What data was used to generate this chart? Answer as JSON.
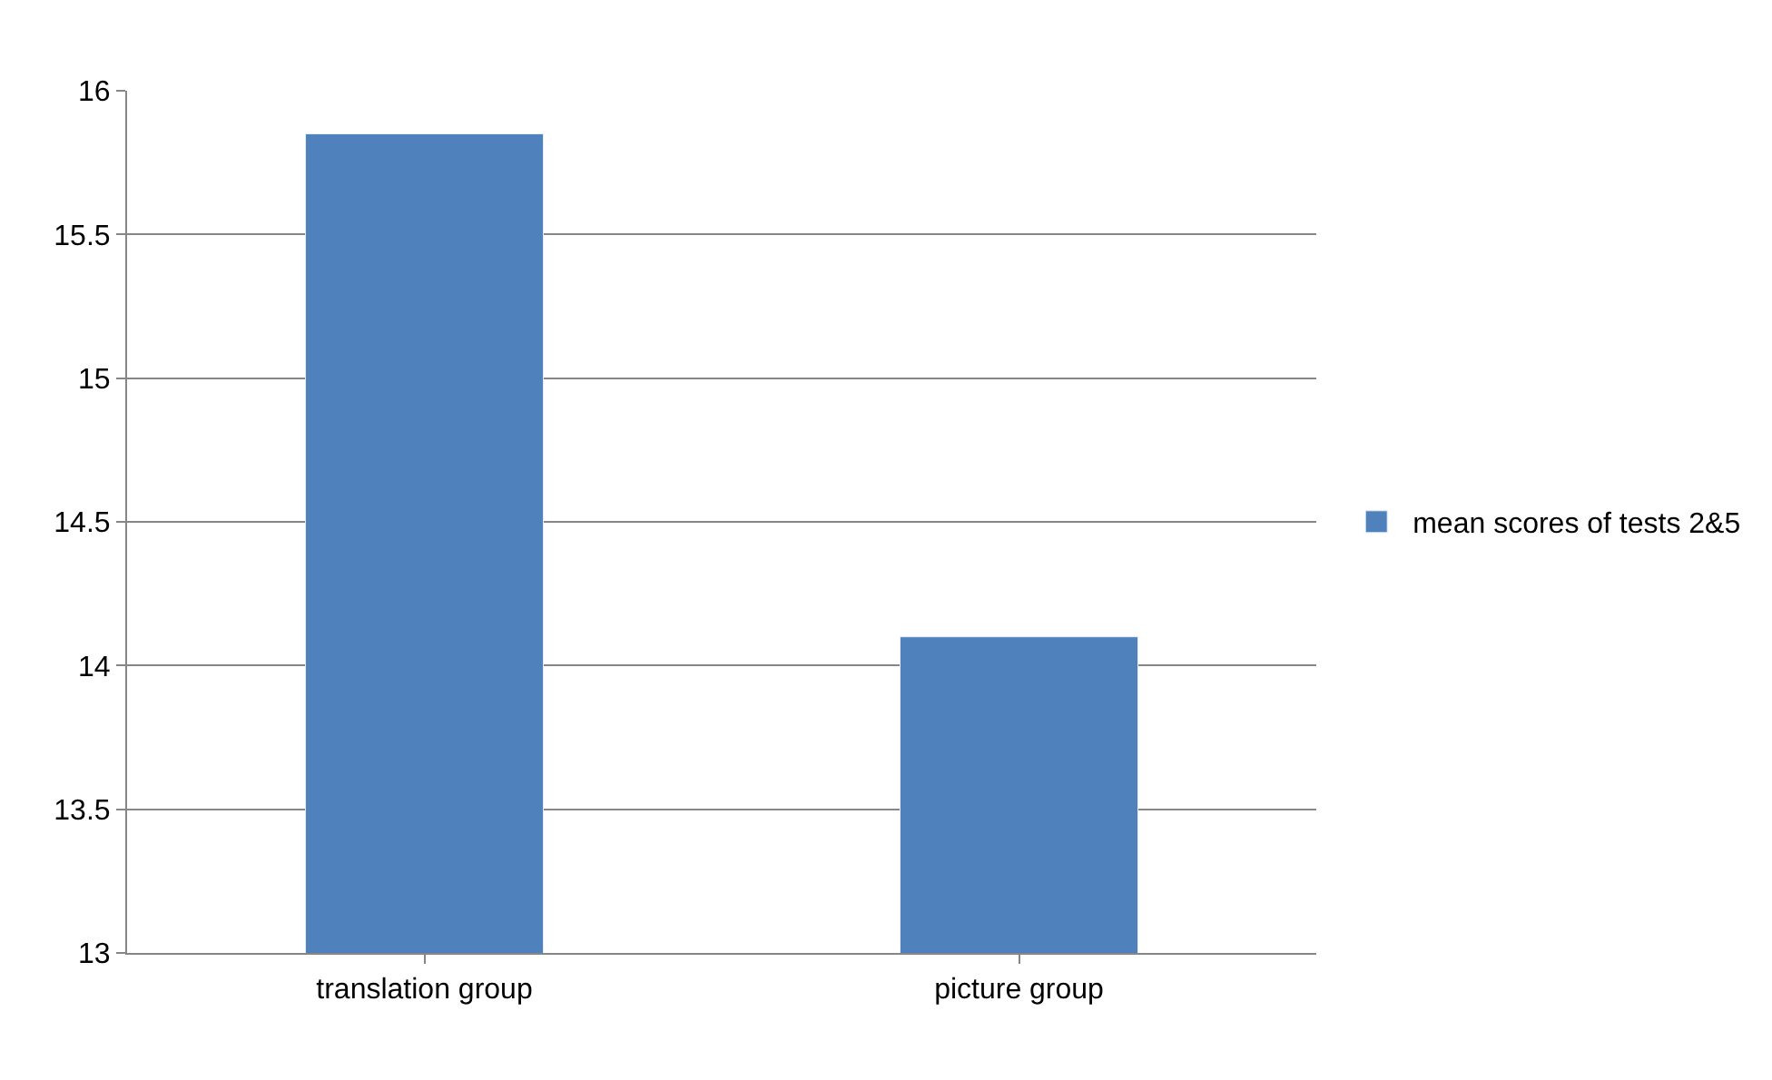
{
  "chart_data": {
    "type": "bar",
    "categories": [
      "translation group",
      "picture group"
    ],
    "series": [
      {
        "name": "mean scores of tests 2&5",
        "color": "#4f81bd",
        "values": [
          15.85,
          14.1
        ]
      }
    ],
    "ylim": [
      13,
      16
    ],
    "yticks": [
      13,
      13.5,
      14,
      14.5,
      15,
      15.5,
      16
    ],
    "grid": "y",
    "legend": "right"
  }
}
